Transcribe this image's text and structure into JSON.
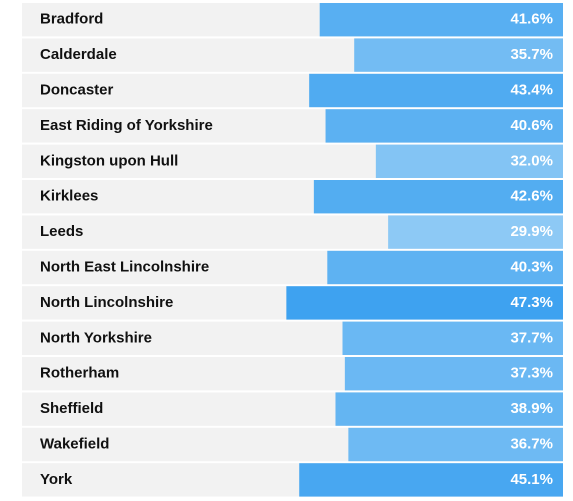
{
  "chart_data": {
    "type": "bar",
    "orientation": "horizontal",
    "bar_anchor": "right",
    "categories": [
      "Bradford",
      "Calderdale",
      "Doncaster",
      "East Riding of Yorkshire",
      "Kingston upon Hull",
      "Kirklees",
      "Leeds",
      "North East Lincolnshire",
      "North Lincolnshire",
      "North Yorkshire",
      "Rotherham",
      "Sheffield",
      "Wakefield",
      "York"
    ],
    "values": [
      41.6,
      35.7,
      43.4,
      40.6,
      32.0,
      42.6,
      29.9,
      40.3,
      47.3,
      37.7,
      37.3,
      38.9,
      36.7,
      45.1
    ],
    "value_labels": [
      "41.6%",
      "35.7%",
      "43.4%",
      "40.6%",
      "32.0%",
      "42.6%",
      "29.9%",
      "40.3%",
      "47.3%",
      "37.7%",
      "37.3%",
      "38.9%",
      "36.7%",
      "45.1%"
    ],
    "xlim": [
      0,
      92.5
    ],
    "color_low": "#8dc9f5",
    "color_high": "#3ea2f0",
    "row_color": "#f2f2f2"
  }
}
